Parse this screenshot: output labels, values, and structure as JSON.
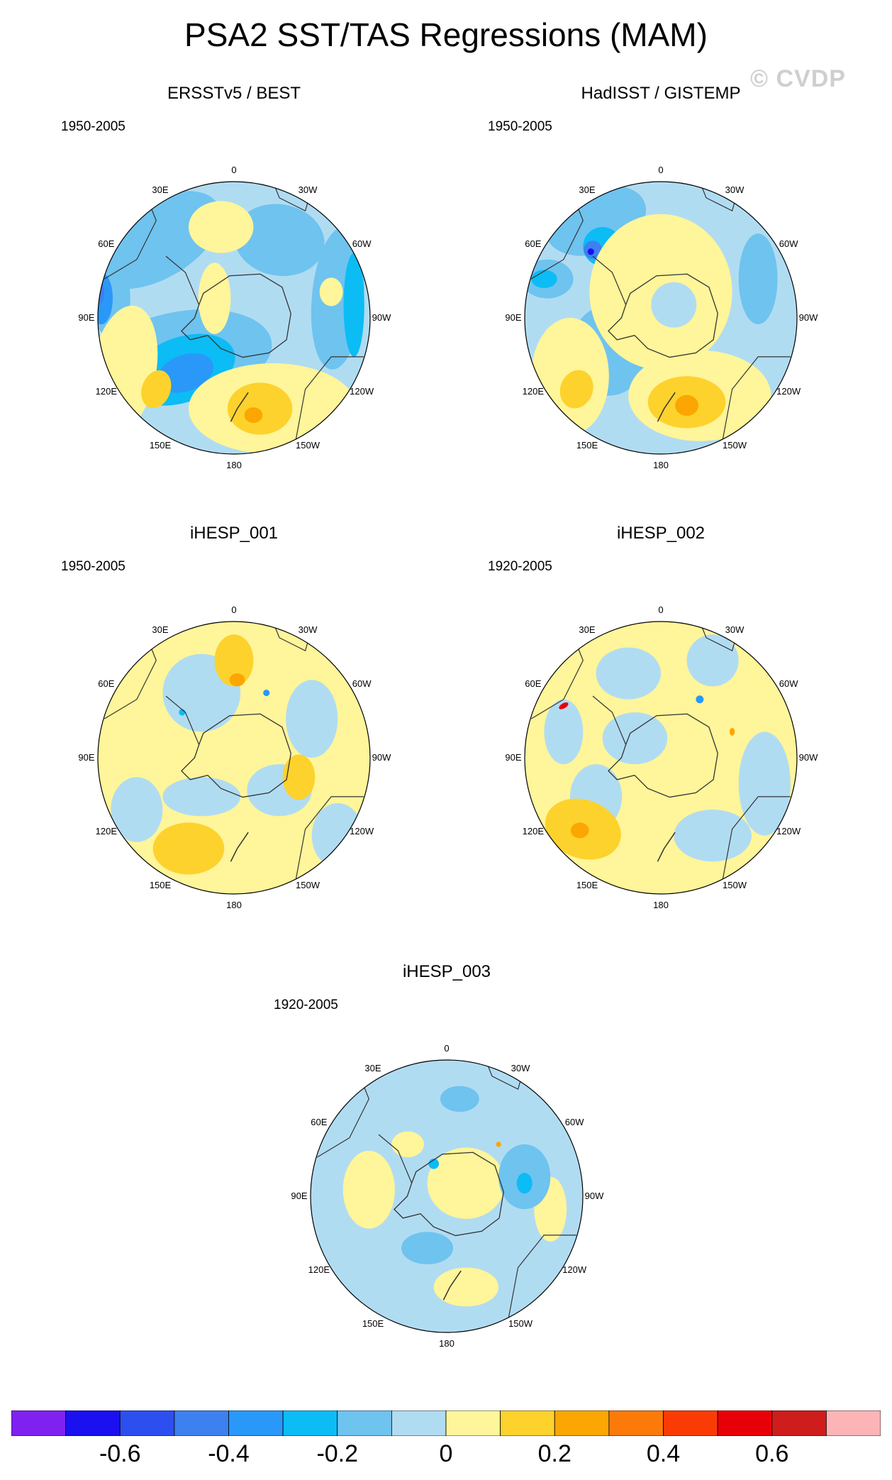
{
  "title": "PSA2 SST/TAS Regressions (MAM)",
  "watermark": "© CVDP",
  "longitude_labels": {
    "0": "0",
    "30E": "30E",
    "60E": "60E",
    "90E": "90E",
    "120E": "120E",
    "150E": "150E",
    "180": "180",
    "150W": "150W",
    "120W": "120W",
    "90W": "90W",
    "60W": "60W",
    "30W": "30W"
  },
  "panels": [
    {
      "title": "ERSSTv5 / BEST",
      "period": "1950-2005"
    },
    {
      "title": "HadISST / GISTEMP",
      "period": "1950-2005"
    },
    {
      "title": "iHESP_001",
      "period": "1950-2005"
    },
    {
      "title": "iHESP_002",
      "period": "1920-2005"
    },
    {
      "title": "iHESP_003",
      "period": "1920-2005"
    }
  ],
  "colorbar": {
    "colors": [
      "#7f22f0",
      "#1b10f0",
      "#2d4ff0",
      "#3d80f0",
      "#2a98f8",
      "#0cbcf5",
      "#6fc3ef",
      "#b0dcf2",
      "#fff59a",
      "#fdd22c",
      "#fba602",
      "#fb7a0a",
      "#fb3b05",
      "#e80008",
      "#cf1c1c",
      "#fcb4b7"
    ],
    "labels": [
      "-0.6",
      "-0.4",
      "-0.2",
      "0",
      "0.2",
      "0.4",
      "0.6"
    ]
  }
}
